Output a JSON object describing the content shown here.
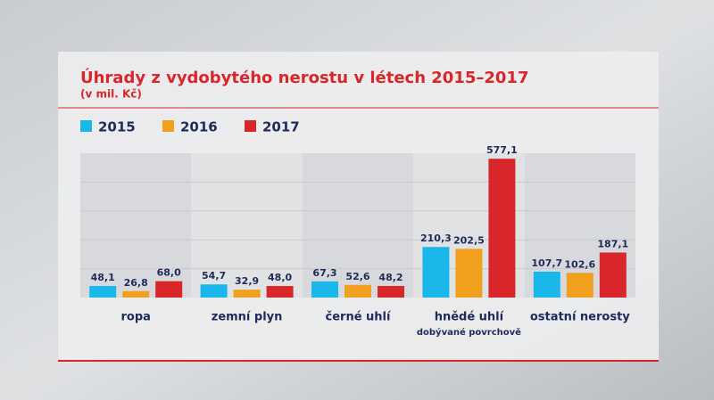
{
  "chart_data": {
    "type": "bar",
    "title": "Úhrady z vydobytého nerostu v létech 2015–2017",
    "subtitle": "(v mil. Kč)",
    "categories": [
      "ropa",
      "zemní plyn",
      "černé uhlí",
      "hnědé uhlí",
      "ostatní nerosty"
    ],
    "category_sublabels": [
      null,
      null,
      null,
      "dobývané povrchově",
      null
    ],
    "series": [
      {
        "name": "2015",
        "color": "#1ab8ea",
        "values": [
          48.1,
          54.7,
          67.3,
          210.3,
          107.7
        ],
        "value_labels": [
          "48,1",
          "54,7",
          "67,3",
          "210,3",
          "107,7"
        ]
      },
      {
        "name": "2016",
        "color": "#f0a01c",
        "values": [
          26.8,
          32.9,
          52.6,
          202.5,
          102.6
        ],
        "value_labels": [
          "26,8",
          "32,9",
          "52,6",
          "202,5",
          "102,6"
        ]
      },
      {
        "name": "2017",
        "color": "#d9262b",
        "values": [
          68.0,
          48.0,
          48.2,
          577.1,
          187.1
        ],
        "value_labels": [
          "68,0",
          "48,0",
          "48,2",
          "577,1",
          "187,1"
        ]
      }
    ],
    "ylim": [
      0,
      600
    ]
  }
}
